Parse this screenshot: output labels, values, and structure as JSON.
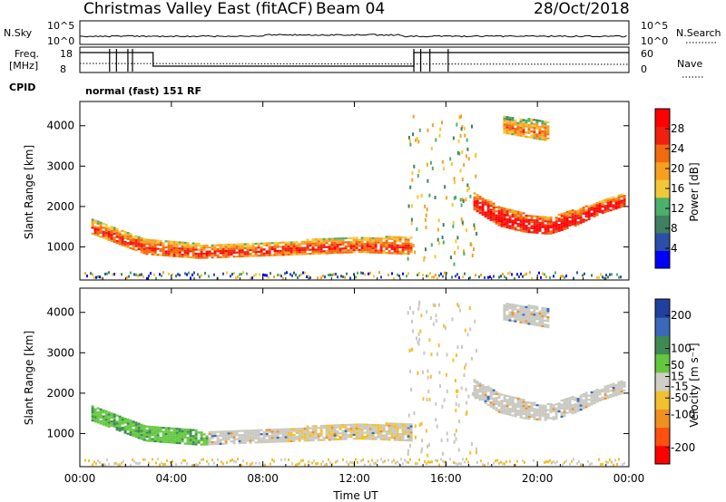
{
  "header": {
    "station": "Christmas Valley East (fitACF)",
    "beam": "Beam 04",
    "date": "28/Oct/2018"
  },
  "strips": {
    "nsky_label": "N.Sky",
    "nsky_ticks": [
      "10^5",
      "10^0"
    ],
    "nsearch_label": "N.Search",
    "nsearch_ticks": [
      "10^5",
      "10^0"
    ],
    "freq_label_1": "Freq.",
    "freq_label_2": "[MHz]",
    "freq_ticks": [
      "18",
      "8"
    ],
    "nave_label": "Nave",
    "nave_ticks": [
      "60",
      "0"
    ],
    "cpid_label": "CPID",
    "cpid_text": "normal (fast) 151 RF"
  },
  "colors": {
    "power_scale": [
      "#0000ff",
      "#2b4fa8",
      "#3f8060",
      "#4caf6a",
      "#f2c838",
      "#f7a020",
      "#f06a10",
      "#f02010",
      "#ff0000"
    ],
    "velocity_scale": [
      "#2040a0",
      "#3b68b8",
      "#3f8a50",
      "#63c840",
      "#cfcfc8",
      "#f2c030",
      "#f09020",
      "#ff5010",
      "#ff0000"
    ],
    "ground_scatter": "#c8c8c0"
  },
  "chart_data": [
    {
      "type": "heatmap",
      "name": "power",
      "xlabel": "",
      "ylabel": "Slant Range [km]",
      "x_ticks": [
        "00:00",
        "04:00",
        "08:00",
        "12:00",
        "16:00",
        "20:00",
        "00:00"
      ],
      "x_hours": [
        0,
        4,
        8,
        12,
        16,
        20,
        24
      ],
      "xlim_hours": [
        0,
        24
      ],
      "y_ticks": [
        1000,
        2000,
        3000,
        4000
      ],
      "ylim": [
        180,
        4600
      ],
      "colorbar_label": "Power [dB]",
      "colorbar_ticks": [
        4,
        8,
        12,
        16,
        20,
        24,
        28
      ],
      "colorbar_range": [
        0,
        32
      ],
      "bands": [
        {
          "t_start": 0.5,
          "t_end": 14.5,
          "r_start": [
            1650,
            1200,
            1050,
            1050,
            1150,
            1200,
            1250
          ],
          "r_end": [
            1300,
            800,
            700,
            750,
            800,
            850,
            800
          ],
          "value": 18
        },
        {
          "t_start": 17.2,
          "t_end": 23.8,
          "r_start": [
            2300,
            2000,
            1800,
            1700,
            1900,
            2100,
            2300
          ],
          "r_end": [
            1900,
            1500,
            1350,
            1300,
            1500,
            1800,
            2000
          ],
          "value": 22
        },
        {
          "t_start": 18.5,
          "t_end": 20.5,
          "r_start": [
            4200,
            4100
          ],
          "r_end": [
            3800,
            3600
          ],
          "value": 14
        }
      ]
    },
    {
      "type": "heatmap",
      "name": "velocity",
      "xlabel": "Time UT",
      "ylabel": "Slant Range [km]",
      "x_ticks": [
        "00:00",
        "04:00",
        "08:00",
        "12:00",
        "16:00",
        "20:00",
        "00:00"
      ],
      "x_hours": [
        0,
        4,
        8,
        12,
        16,
        20,
        24
      ],
      "xlim_hours": [
        0,
        24
      ],
      "y_ticks": [
        1000,
        2000,
        3000,
        4000
      ],
      "ylim": [
        180,
        4600
      ],
      "colorbar_label": "Velocity [m s⁻¹]",
      "colorbar_ticks": [
        200,
        100,
        50,
        15,
        -15,
        -50,
        -100,
        -200
      ],
      "colorbar_range": [
        -250,
        250
      ]
    }
  ]
}
